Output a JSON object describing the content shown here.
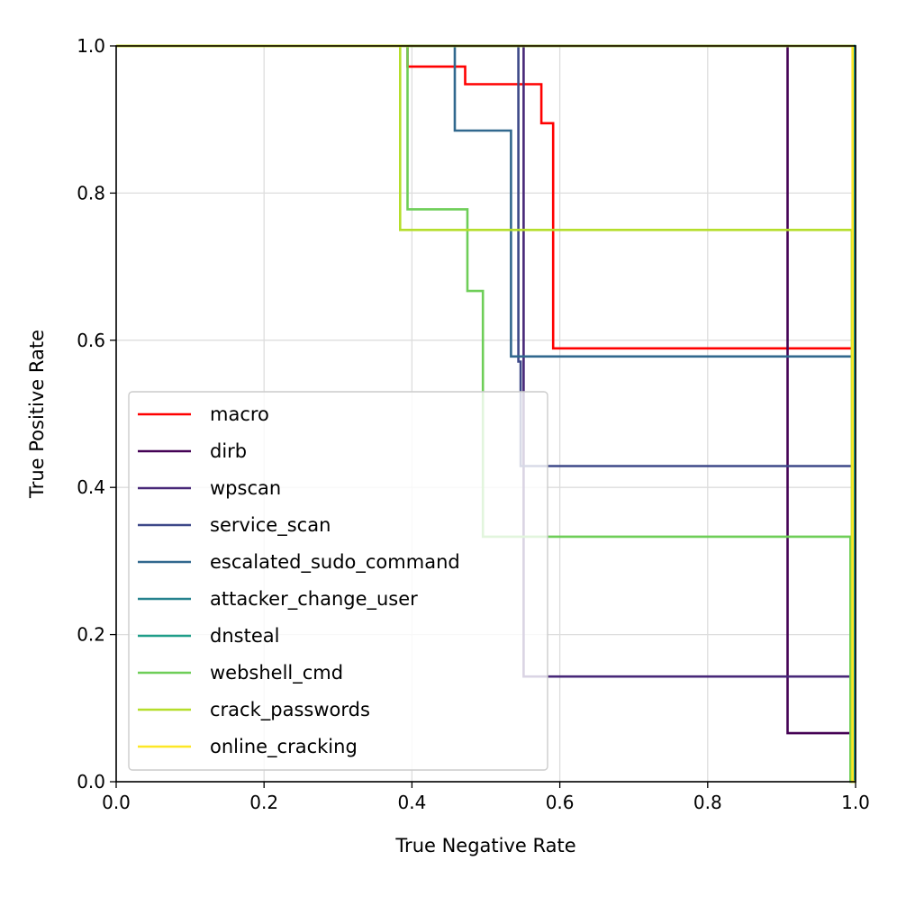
{
  "chart_data": {
    "type": "line",
    "title": "",
    "xlabel": "True Negative Rate",
    "ylabel": "True Positive Rate",
    "xlim": [
      0.0,
      1.0
    ],
    "ylim": [
      0.0,
      1.0
    ],
    "xticks": [
      "0.0",
      "0.2",
      "0.4",
      "0.6",
      "0.8",
      "1.0"
    ],
    "yticks": [
      "0.0",
      "0.2",
      "0.4",
      "0.6",
      "0.8",
      "1.0"
    ],
    "grid": true,
    "legend_position": "lower-left",
    "series": [
      {
        "name": "macro",
        "color": "#ff0000",
        "x": [
          0.0,
          0.394,
          0.394,
          0.435,
          0.435,
          0.472,
          0.472,
          0.555,
          0.555,
          0.575,
          0.575,
          0.583,
          0.583,
          0.591,
          0.591,
          0.997,
          0.997,
          0.999,
          0.999
        ],
        "y": [
          1.0,
          1.0,
          0.972,
          0.972,
          0.972,
          0.972,
          0.948,
          0.948,
          0.948,
          0.948,
          0.895,
          0.895,
          0.895,
          0.895,
          0.589,
          0.589,
          0.545,
          0.545,
          0.0
        ]
      },
      {
        "name": "dirb",
        "color": "#440154",
        "x": [
          0.0,
          0.908,
          0.908,
          0.995,
          0.995,
          1.0
        ],
        "y": [
          1.0,
          1.0,
          0.066,
          0.066,
          0.0,
          0.0
        ]
      },
      {
        "name": "wpscan",
        "color": "#482878",
        "x": [
          0.0,
          0.551,
          0.551,
          0.997,
          0.997,
          1.0
        ],
        "y": [
          1.0,
          1.0,
          0.143,
          0.143,
          0.0,
          0.0
        ]
      },
      {
        "name": "service_scan",
        "color": "#3e4989",
        "x": [
          0.0,
          0.544,
          0.544,
          0.547,
          0.547,
          0.997,
          0.997,
          1.0
        ],
        "y": [
          1.0,
          1.0,
          0.571,
          0.571,
          0.429,
          0.429,
          0.0,
          0.0
        ]
      },
      {
        "name": "escalated_sudo_command",
        "color": "#31688e",
        "x": [
          0.0,
          0.458,
          0.458,
          0.534,
          0.534,
          0.997,
          0.997,
          1.0
        ],
        "y": [
          1.0,
          1.0,
          0.885,
          0.885,
          0.578,
          0.578,
          0.0,
          0.0
        ]
      },
      {
        "name": "attacker_change_user",
        "color": "#26828e",
        "x": [
          0.0,
          0.998,
          0.998,
          1.0
        ],
        "y": [
          1.0,
          1.0,
          0.0,
          0.0
        ]
      },
      {
        "name": "dnsteal",
        "color": "#1f9e89",
        "x": [
          0.0,
          0.999,
          0.999,
          1.0
        ],
        "y": [
          1.0,
          1.0,
          0.0,
          0.0
        ]
      },
      {
        "name": "webshell_cmd",
        "color": "#6ece58",
        "x": [
          0.0,
          0.394,
          0.394,
          0.475,
          0.475,
          0.496,
          0.496,
          0.993,
          0.993,
          1.0
        ],
        "y": [
          1.0,
          1.0,
          0.778,
          0.778,
          0.667,
          0.667,
          0.333,
          0.333,
          0.0,
          0.0
        ]
      },
      {
        "name": "crack_passwords",
        "color": "#b5de2b",
        "x": [
          0.0,
          0.384,
          0.384,
          0.995,
          0.995,
          1.0
        ],
        "y": [
          1.0,
          1.0,
          0.75,
          0.75,
          0.0,
          0.0
        ]
      },
      {
        "name": "online_cracking",
        "color": "#fde725",
        "x": [
          0.0,
          0.996,
          0.996,
          1.0
        ],
        "y": [
          1.0,
          1.0,
          0.0,
          0.0
        ]
      }
    ]
  }
}
